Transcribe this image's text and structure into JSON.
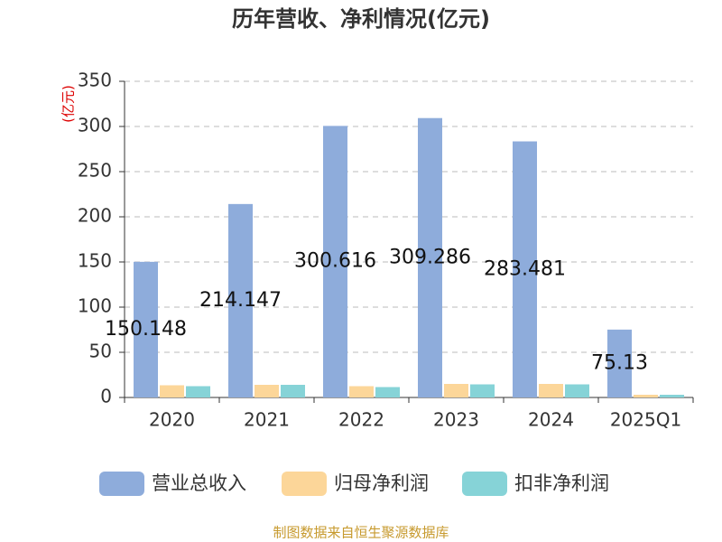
{
  "chart_data": {
    "type": "bar",
    "title": "历年营收、净利情况(亿元)",
    "y_label": "(亿元)",
    "source": "制图数据来自恒生聚源数据库",
    "categories": [
      "2020",
      "2021",
      "2022",
      "2023",
      "2024",
      "2025Q1"
    ],
    "series": [
      {
        "name": "营业总收入",
        "color": "#8eacdb",
        "data_labels": true,
        "values": [
          150.148,
          214.147,
          300.616,
          309.286,
          283.481,
          75.13
        ]
      },
      {
        "name": "归母净利润",
        "color": "#fcd699",
        "values": [
          13.5,
          14,
          12.5,
          15,
          15,
          3
        ]
      },
      {
        "name": "扣非净利润",
        "color": "#86d3d7",
        "values": [
          12.5,
          14,
          11.5,
          14.5,
          14.5,
          3
        ]
      }
    ],
    "ylim": [
      0,
      350
    ],
    "yticks": [
      0,
      50,
      100,
      150,
      200,
      250,
      300,
      350
    ],
    "grid": true
  }
}
